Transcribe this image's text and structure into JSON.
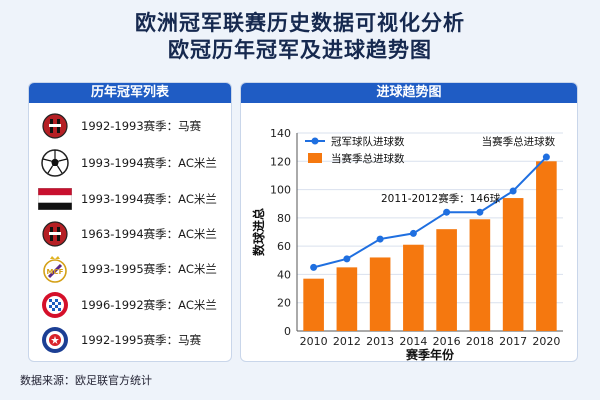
{
  "title": {
    "line1": "欧洲冠军联赛历史数据可视化分析",
    "line2": "欧冠历年冠军及进球趋势图"
  },
  "winners_panel": {
    "heading": "历年冠军列表",
    "items": [
      {
        "label": "1992-1993赛季：马赛",
        "icon": "ac-milan-crest-icon"
      },
      {
        "label": "1993-1994赛季：AC米兰",
        "icon": "football-icon"
      },
      {
        "label": "1993-1994赛季：AC米兰",
        "icon": "striped-flag-icon"
      },
      {
        "label": "1963-1994赛季：AC米兰",
        "icon": "ac-milan-crest-icon"
      },
      {
        "label": "1993-1995赛季：AC米兰",
        "icon": "real-madrid-crest-icon"
      },
      {
        "label": "1996-1992赛季：AC米兰",
        "icon": "bayern-crest-icon"
      },
      {
        "label": "1992-1995赛季：马赛",
        "icon": "blue-club-crest-icon"
      }
    ]
  },
  "chart_panel": {
    "heading": "进球趋势图"
  },
  "chart_data": {
    "type": "bar",
    "categories": [
      "2010",
      "2012",
      "2013",
      "2014",
      "2016",
      "2018",
      "2017",
      "2020"
    ],
    "xlabel": "赛季年份",
    "ylabel": "数球进总",
    "ylim": [
      0,
      140
    ],
    "yticks": [
      0,
      20,
      40,
      60,
      80,
      100,
      120,
      140
    ],
    "grid": true,
    "legend_position": "top-left",
    "series": [
      {
        "name": "冠军球队进球数",
        "kind": "line",
        "color": "#1f6fe0",
        "values": [
          45,
          51,
          65,
          69,
          84,
          84,
          99,
          123
        ]
      },
      {
        "name": "当赛季总进球数",
        "kind": "bar",
        "color": "#f5780f",
        "values": [
          37,
          45,
          52,
          61,
          72,
          79,
          94,
          120
        ]
      }
    ],
    "annotations": [
      {
        "text": "2011-2012赛季：146球",
        "category": "2016"
      },
      {
        "text": "当赛季总进球数",
        "category": "2020"
      }
    ]
  },
  "footer": {
    "source": "数据来源：欧足联官方统计"
  }
}
